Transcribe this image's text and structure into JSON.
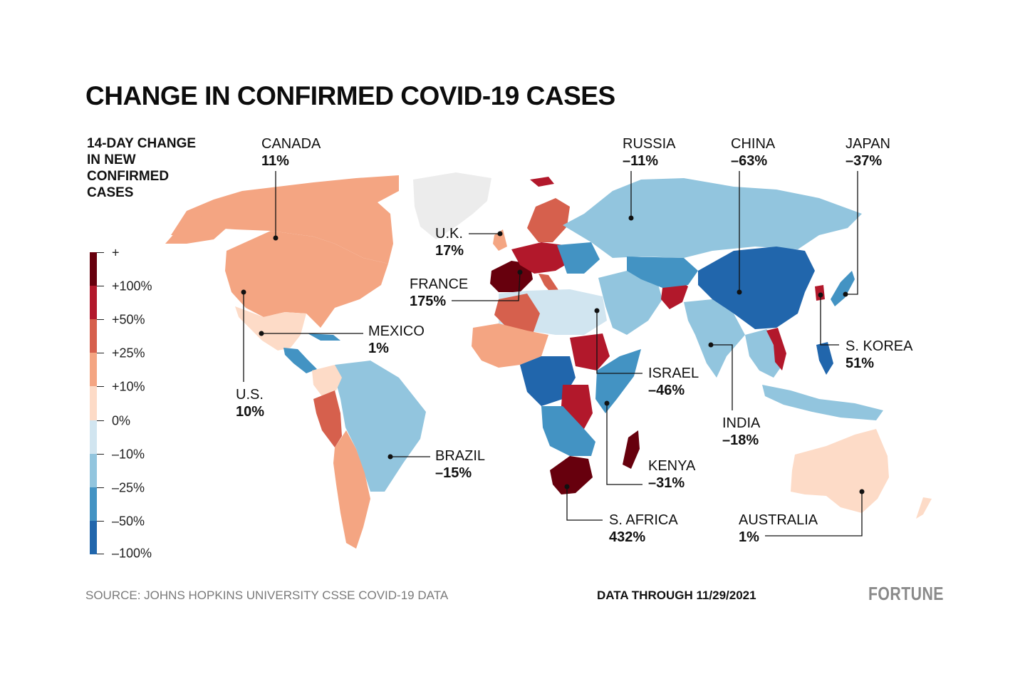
{
  "title": "CHANGE IN CONFIRMED COVID-19 CASES",
  "legend": {
    "title_lines": [
      "14-DAY CHANGE",
      "IN NEW",
      "CONFIRMED",
      "CASES"
    ],
    "labels": [
      "+",
      "+100%",
      "+50%",
      "+25%",
      "+10%",
      "0%",
      "–10%",
      "–25%",
      "–50%",
      "–100%"
    ],
    "colors": [
      "#67000d",
      "#b2182b",
      "#d6604d",
      "#f4a582",
      "#fddbc7",
      "#d1e5f0",
      "#92c5de",
      "#4393c3",
      "#2166ac"
    ]
  },
  "callouts": [
    {
      "id": "canada",
      "name": "CANADA",
      "value": "11%"
    },
    {
      "id": "russia",
      "name": "RUSSIA",
      "value": "–11%"
    },
    {
      "id": "china",
      "name": "CHINA",
      "value": "–63%"
    },
    {
      "id": "japan",
      "name": "JAPAN",
      "value": "–37%"
    },
    {
      "id": "uk",
      "name": "U.K.",
      "value": "17%"
    },
    {
      "id": "france",
      "name": "FRANCE",
      "value": "175%"
    },
    {
      "id": "mexico",
      "name": "MEXICO",
      "value": "1%"
    },
    {
      "id": "us",
      "name": "U.S.",
      "value": "10%"
    },
    {
      "id": "brazil",
      "name": "BRAZIL",
      "value": "–15%"
    },
    {
      "id": "israel",
      "name": "ISRAEL",
      "value": "–46%"
    },
    {
      "id": "skorea",
      "name": "S. KOREA",
      "value": "51%"
    },
    {
      "id": "india",
      "name": "INDIA",
      "value": "–18%"
    },
    {
      "id": "kenya",
      "name": "KENYA",
      "value": "–31%"
    },
    {
      "id": "safrica",
      "name": "S. AFRICA",
      "value": "432%"
    },
    {
      "id": "australia",
      "name": "AUSTRALIA",
      "value": "1%"
    }
  ],
  "source": "SOURCE: JOHNS HOPKINS UNIVERSITY CSSE COVID-19 DATA",
  "data_through": "DATA THROUGH 11/29/2021",
  "brand": "FORTUNE"
}
